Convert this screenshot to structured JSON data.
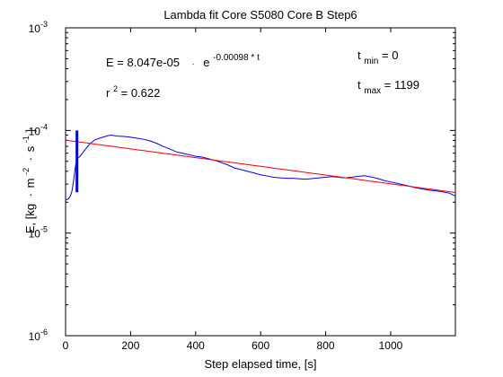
{
  "chart_data": {
    "type": "line",
    "title": "Lambda fit  Core S5080 Core B  Step6",
    "xlabel": "Step elapsed time, [s]",
    "ylabel": {
      "text": "E, [kg",
      "sup1": "m",
      "sup1_exp": "-2",
      "sup2": "s",
      "sup2_exp": "-1",
      "close": "]"
    },
    "x_scale": "linear",
    "y_scale": "log",
    "xlim": [
      0,
      1199
    ],
    "ylim": [
      1e-06,
      0.001
    ],
    "x_ticks": [
      {
        "value": 0,
        "label": "0"
      },
      {
        "value": 200,
        "label": "200"
      },
      {
        "value": 400,
        "label": "400"
      },
      {
        "value": 600,
        "label": "600"
      },
      {
        "value": 800,
        "label": "800"
      },
      {
        "value": 1000,
        "label": "1000"
      }
    ],
    "y_ticks": [
      {
        "value": 1e-06,
        "base": "10",
        "exp": "-6"
      },
      {
        "value": 1e-05,
        "base": "10",
        "exp": "-5"
      },
      {
        "value": 0.0001,
        "base": "10",
        "exp": "-4"
      },
      {
        "value": 0.001,
        "base": "10",
        "exp": "-3"
      }
    ],
    "grid": false,
    "annotations": {
      "equation": {
        "lhs": "E = 8.047e-05",
        "dot": "·",
        "base": "e",
        "exponent": "-0.00098 * t"
      },
      "r2": {
        "base": "r",
        "exp": "2",
        "value": " = 0.622"
      },
      "tmin": {
        "base": "t",
        "sub": "min",
        "value": " = 0"
      },
      "tmax": {
        "base": "t",
        "sub": "max",
        "value": " = 1199"
      }
    },
    "series": [
      {
        "color": "#0000ff",
        "points": [
          [
            0,
            2.1e-05
          ],
          [
            8,
            2.15e-05
          ],
          [
            15,
            2.3e-05
          ],
          [
            20,
            2.6e-05
          ],
          [
            25,
            3.3e-05
          ],
          [
            30,
            4.4e-05
          ],
          [
            35,
            5.3e-05
          ],
          [
            42,
            5.5e-05
          ],
          [
            50,
            5.9e-05
          ],
          [
            60,
            6.5e-05
          ],
          [
            75,
            7.4e-05
          ],
          [
            90,
            8.1e-05
          ],
          [
            110,
            8.5e-05
          ],
          [
            130,
            8.9e-05
          ],
          [
            140,
            9e-05
          ],
          [
            160,
            8.8e-05
          ],
          [
            180,
            8.75e-05
          ],
          [
            200,
            8.6e-05
          ],
          [
            220,
            8.4e-05
          ],
          [
            240,
            8.2e-05
          ],
          [
            260,
            7.9e-05
          ],
          [
            280,
            7.5e-05
          ],
          [
            300,
            7e-05
          ],
          [
            320,
            6.6e-05
          ],
          [
            340,
            6.2e-05
          ],
          [
            360,
            6e-05
          ],
          [
            380,
            5.8e-05
          ],
          [
            400,
            5.6e-05
          ],
          [
            420,
            5.5e-05
          ],
          [
            440,
            5.3e-05
          ],
          [
            460,
            5.1e-05
          ],
          [
            480,
            4.85e-05
          ],
          [
            500,
            4.6e-05
          ],
          [
            520,
            4.3e-05
          ],
          [
            540,
            4.15e-05
          ],
          [
            560,
            4e-05
          ],
          [
            580,
            3.85e-05
          ],
          [
            600,
            3.7e-05
          ],
          [
            620,
            3.6e-05
          ],
          [
            640,
            3.5e-05
          ],
          [
            660,
            3.45e-05
          ],
          [
            680,
            3.42e-05
          ],
          [
            700,
            3.42e-05
          ],
          [
            720,
            3.38e-05
          ],
          [
            740,
            3.35e-05
          ],
          [
            760,
            3.4e-05
          ],
          [
            780,
            3.45e-05
          ],
          [
            800,
            3.5e-05
          ],
          [
            820,
            3.55e-05
          ],
          [
            840,
            3.5e-05
          ],
          [
            860,
            3.45e-05
          ],
          [
            880,
            3.5e-05
          ],
          [
            900,
            3.58e-05
          ],
          [
            920,
            3.62e-05
          ],
          [
            940,
            3.52e-05
          ],
          [
            960,
            3.4e-05
          ],
          [
            980,
            3.25e-05
          ],
          [
            1000,
            3.15e-05
          ],
          [
            1020,
            3.05e-05
          ],
          [
            1040,
            2.95e-05
          ],
          [
            1060,
            2.85e-05
          ],
          [
            1080,
            2.75e-05
          ],
          [
            1100,
            2.68e-05
          ],
          [
            1120,
            2.62e-05
          ],
          [
            1140,
            2.58e-05
          ],
          [
            1160,
            2.52e-05
          ],
          [
            1180,
            2.45e-05
          ],
          [
            1199,
            2.3e-05
          ]
        ]
      },
      {
        "color": "#ff0000",
        "fit": {
          "a": 8.047e-05,
          "b": -0.00098
        },
        "x_range": [
          0,
          1199
        ]
      }
    ],
    "marker": {
      "color": "#0000ff",
      "x": 35,
      "y_range": [
        2.5e-05,
        0.0001
      ]
    }
  }
}
